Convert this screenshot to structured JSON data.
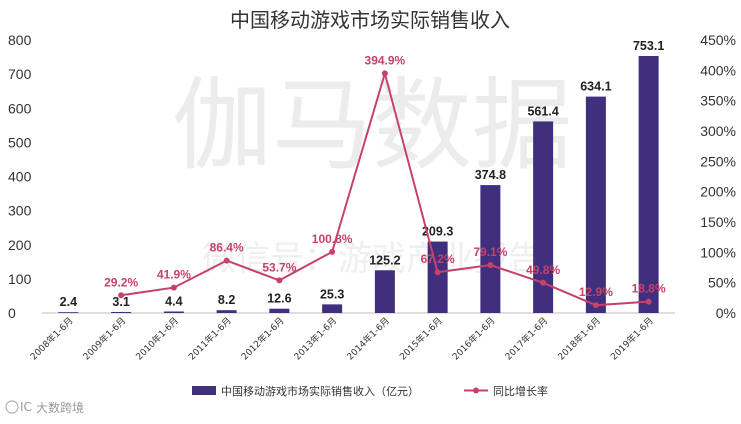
{
  "watermark": {
    "main": "伽马数据",
    "sub": "微信号：游戏产业报告"
  },
  "source_mark": {
    "logo": "IC",
    "text": "大数跨境"
  },
  "colors": {
    "bar": "#3f2f7c",
    "line": "#c8416b",
    "axis": "#bdbdbd"
  },
  "chart_data": {
    "type": "bar",
    "title": "中国移动游戏市场实际销售收入",
    "categories": [
      "2008年1-6月",
      "2009年1-6月",
      "2010年1-6月",
      "2011年1-6月",
      "2012年1-6月",
      "2013年1-6月",
      "2014年1-6月",
      "2015年1-6月",
      "2016年1-6月",
      "2017年1-6月",
      "2018年1-6月",
      "2019年1-6月"
    ],
    "series": [
      {
        "name": "中国移动游戏市场实际销售收入（亿元）",
        "type": "bar",
        "axis": "left",
        "values": [
          2.4,
          3.1,
          4.4,
          8.2,
          12.6,
          25.3,
          125.2,
          209.3,
          374.8,
          561.4,
          634.1,
          753.1
        ],
        "labels": [
          "2.4",
          "3.1",
          "4.4",
          "8.2",
          "12.6",
          "25.3",
          "125.2",
          "209.3",
          "374.8",
          "561.4",
          "634.1",
          "753.1"
        ]
      },
      {
        "name": "同比增长率",
        "type": "line",
        "axis": "right",
        "values": [
          null,
          29.2,
          41.9,
          86.4,
          53.7,
          100.8,
          394.9,
          67.2,
          79.1,
          49.8,
          12.9,
          18.8
        ],
        "labels": [
          "",
          "29.2%",
          "41.9%",
          "86.4%",
          "53.7%",
          "100.8%",
          "394.9%",
          "67.2%",
          "79.1%",
          "49.8%",
          "12.9%",
          "18.8%"
        ]
      }
    ],
    "y_left": {
      "min": 0,
      "max": 800,
      "ticks": [
        "0",
        "100",
        "200",
        "300",
        "400",
        "500",
        "600",
        "700",
        "800"
      ]
    },
    "y_right": {
      "min": 0,
      "max": 450,
      "ticks": [
        "0%",
        "50%",
        "100%",
        "150%",
        "200%",
        "250%",
        "300%",
        "350%",
        "400%",
        "450%"
      ]
    },
    "grid": false,
    "legend_position": "bottom"
  }
}
